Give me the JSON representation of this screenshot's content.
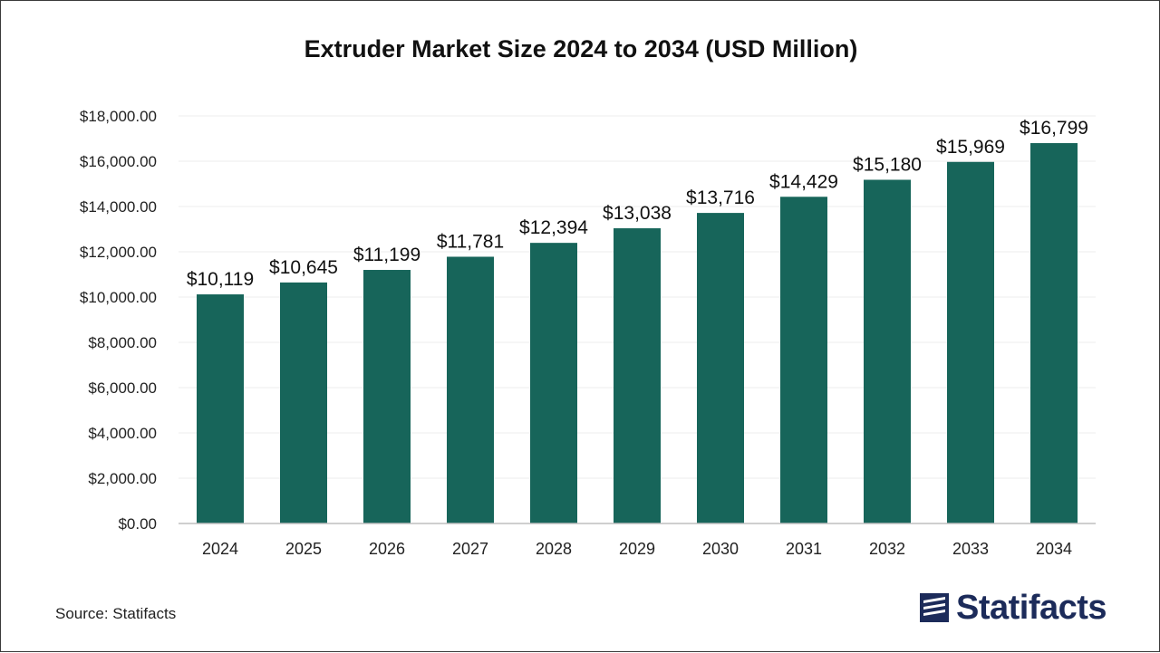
{
  "chart_data": {
    "type": "bar",
    "title": "Extruder Market Size 2024 to 2034 (USD Million)",
    "xlabel": "",
    "ylabel": "",
    "categories": [
      "2024",
      "2025",
      "2026",
      "2027",
      "2028",
      "2029",
      "2030",
      "2031",
      "2032",
      "2033",
      "2034"
    ],
    "values": [
      10119,
      10645,
      11199,
      11781,
      12394,
      13038,
      13716,
      14429,
      15180,
      15969,
      16799
    ],
    "data_labels": [
      "$10,119",
      "$10,645",
      "$11,199",
      "$11,781",
      "$12,394",
      "$13,038",
      "$13,716",
      "$14,429",
      "$15,180",
      "$15,969",
      "$16,799"
    ],
    "ylim": [
      0,
      18000
    ],
    "yticks": [
      0,
      2000,
      4000,
      6000,
      8000,
      10000,
      12000,
      14000,
      16000,
      18000
    ],
    "ytick_labels": [
      "$0.00",
      "$2,000.00",
      "$4,000.00",
      "$6,000.00",
      "$8,000.00",
      "$10,000.00",
      "$12,000.00",
      "$14,000.00",
      "$16,000.00",
      "$18,000.00"
    ],
    "grid": true,
    "legend": "none",
    "colors": {
      "bar": "#17655a",
      "grid": "#ececec",
      "axis": "#bfbfbf"
    }
  },
  "source": "Source: Statifacts",
  "brand": {
    "name": "Statifacts",
    "icon": "statifacts-logo-icon",
    "color": "#1c2b5a"
  }
}
